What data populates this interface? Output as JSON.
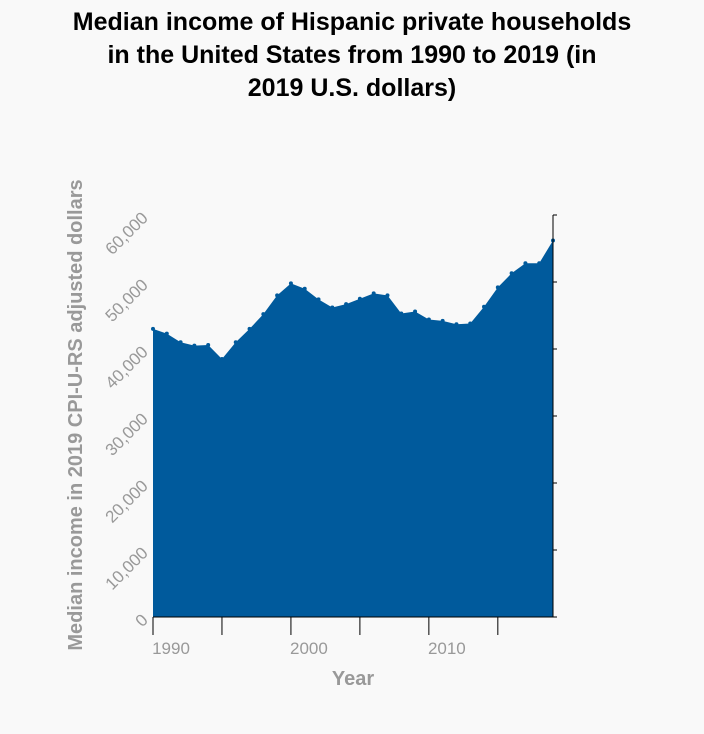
{
  "chart_data": {
    "type": "area",
    "title_lines": [
      "Median income of Hispanic private households",
      "in the United States from 1990 to 2019 (in",
      "2019 U.S. dollars)"
    ],
    "xlabel": "Year",
    "ylabel": "Median income in 2019 CPI-U-RS adjusted dollars",
    "xlim": [
      1990,
      2019
    ],
    "ylim": [
      0,
      60000
    ],
    "x_ticks": [
      1990,
      1995,
      2000,
      2005,
      2010,
      2015
    ],
    "x_tick_labels": [
      "1990",
      "",
      "2000",
      "",
      "2010",
      ""
    ],
    "y_ticks": [
      0,
      10000,
      20000,
      30000,
      40000,
      50000,
      60000
    ],
    "y_tick_labels": [
      "0",
      "10,000",
      "20,000",
      "30,000",
      "40,000",
      "50,000",
      "60,000"
    ],
    "grid": false,
    "fill_color": "#005a9c",
    "x": [
      1990,
      1991,
      1992,
      1993,
      1994,
      1995,
      1996,
      1997,
      1998,
      1999,
      2000,
      2001,
      2002,
      2003,
      2004,
      2005,
      2006,
      2007,
      2008,
      2009,
      2010,
      2011,
      2012,
      2013,
      2014,
      2015,
      2016,
      2017,
      2018,
      2019
    ],
    "values": [
      43000,
      42300,
      41000,
      40500,
      40600,
      38500,
      41000,
      43000,
      45200,
      48000,
      49800,
      49000,
      47400,
      46200,
      46700,
      47500,
      48300,
      48000,
      45300,
      45600,
      44400,
      44200,
      43700,
      43800,
      46300,
      49200,
      51300,
      52800,
      52800,
      56200
    ]
  }
}
